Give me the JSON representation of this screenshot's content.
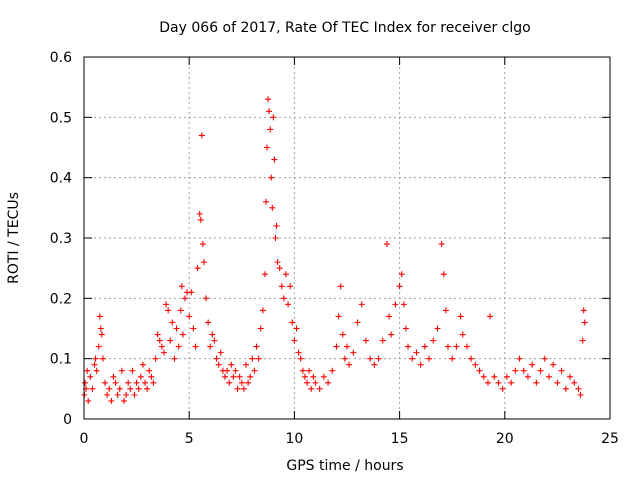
{
  "chart_data": {
    "type": "scatter",
    "title": "Day 066 of 2017, Rate Of TEC Index for receiver clgo",
    "xlabel": "GPS time / hours",
    "ylabel": "ROTI / TECUs",
    "xlim": [
      0,
      25
    ],
    "ylim": [
      0,
      0.6
    ],
    "x_ticks": [
      0,
      5,
      10,
      15,
      20,
      25
    ],
    "y_ticks": [
      0,
      0.1,
      0.2,
      0.3,
      0.4,
      0.5,
      0.6
    ],
    "x_tick_labels": [
      "0",
      "5",
      "10",
      "15",
      "20",
      "25"
    ],
    "y_tick_labels": [
      "0",
      "0.1",
      "0.2",
      "0.3",
      "0.4",
      "0.5",
      "0.6"
    ],
    "grid": true,
    "legend": "none",
    "marker": "plus",
    "color": "#ff0000",
    "points": [
      [
        0.02,
        0.04
      ],
      [
        0.05,
        0.06
      ],
      [
        0.1,
        0.05
      ],
      [
        0.15,
        0.08
      ],
      [
        0.2,
        0.03
      ],
      [
        0.3,
        0.07
      ],
      [
        0.4,
        0.05
      ],
      [
        0.5,
        0.09
      ],
      [
        0.55,
        0.1
      ],
      [
        0.6,
        0.08
      ],
      [
        0.7,
        0.12
      ],
      [
        0.75,
        0.17
      ],
      [
        0.8,
        0.15
      ],
      [
        0.85,
        0.14
      ],
      [
        0.9,
        0.1
      ],
      [
        1.0,
        0.06
      ],
      [
        1.1,
        0.04
      ],
      [
        1.2,
        0.05
      ],
      [
        1.3,
        0.03
      ],
      [
        1.4,
        0.07
      ],
      [
        1.5,
        0.06
      ],
      [
        1.6,
        0.04
      ],
      [
        1.7,
        0.05
      ],
      [
        1.8,
        0.08
      ],
      [
        1.9,
        0.03
      ],
      [
        2.0,
        0.04
      ],
      [
        2.1,
        0.06
      ],
      [
        2.2,
        0.05
      ],
      [
        2.3,
        0.08
      ],
      [
        2.4,
        0.04
      ],
      [
        2.5,
        0.06
      ],
      [
        2.6,
        0.05
      ],
      [
        2.7,
        0.07
      ],
      [
        2.8,
        0.09
      ],
      [
        2.9,
        0.06
      ],
      [
        3.0,
        0.05
      ],
      [
        3.1,
        0.08
      ],
      [
        3.2,
        0.07
      ],
      [
        3.3,
        0.06
      ],
      [
        3.4,
        0.1
      ],
      [
        3.5,
        0.14
      ],
      [
        3.6,
        0.13
      ],
      [
        3.7,
        0.12
      ],
      [
        3.8,
        0.11
      ],
      [
        3.9,
        0.19
      ],
      [
        4.0,
        0.18
      ],
      [
        4.1,
        0.13
      ],
      [
        4.2,
        0.16
      ],
      [
        4.3,
        0.1
      ],
      [
        4.4,
        0.15
      ],
      [
        4.5,
        0.12
      ],
      [
        4.6,
        0.18
      ],
      [
        4.65,
        0.22
      ],
      [
        4.7,
        0.14
      ],
      [
        4.8,
        0.2
      ],
      [
        4.9,
        0.21
      ],
      [
        5.0,
        0.17
      ],
      [
        5.1,
        0.21
      ],
      [
        5.2,
        0.15
      ],
      [
        5.3,
        0.12
      ],
      [
        5.4,
        0.25
      ],
      [
        5.5,
        0.34
      ],
      [
        5.55,
        0.33
      ],
      [
        5.6,
        0.47
      ],
      [
        5.65,
        0.29
      ],
      [
        5.7,
        0.26
      ],
      [
        5.8,
        0.2
      ],
      [
        5.9,
        0.16
      ],
      [
        6.0,
        0.12
      ],
      [
        6.1,
        0.14
      ],
      [
        6.2,
        0.13
      ],
      [
        6.3,
        0.1
      ],
      [
        6.4,
        0.09
      ],
      [
        6.5,
        0.11
      ],
      [
        6.6,
        0.08
      ],
      [
        6.7,
        0.07
      ],
      [
        6.8,
        0.08
      ],
      [
        6.9,
        0.06
      ],
      [
        7.0,
        0.09
      ],
      [
        7.1,
        0.07
      ],
      [
        7.2,
        0.08
      ],
      [
        7.3,
        0.05
      ],
      [
        7.4,
        0.07
      ],
      [
        7.5,
        0.06
      ],
      [
        7.6,
        0.05
      ],
      [
        7.7,
        0.09
      ],
      [
        7.8,
        0.06
      ],
      [
        7.9,
        0.07
      ],
      [
        8.0,
        0.1
      ],
      [
        8.1,
        0.08
      ],
      [
        8.2,
        0.12
      ],
      [
        8.3,
        0.1
      ],
      [
        8.4,
        0.15
      ],
      [
        8.5,
        0.18
      ],
      [
        8.6,
        0.24
      ],
      [
        8.65,
        0.36
      ],
      [
        8.7,
        0.45
      ],
      [
        8.75,
        0.53
      ],
      [
        8.8,
        0.51
      ],
      [
        8.85,
        0.48
      ],
      [
        8.9,
        0.4
      ],
      [
        8.95,
        0.35
      ],
      [
        9.0,
        0.5
      ],
      [
        9.05,
        0.43
      ],
      [
        9.1,
        0.3
      ],
      [
        9.15,
        0.32
      ],
      [
        9.2,
        0.26
      ],
      [
        9.3,
        0.25
      ],
      [
        9.4,
        0.22
      ],
      [
        9.5,
        0.2
      ],
      [
        9.6,
        0.24
      ],
      [
        9.7,
        0.19
      ],
      [
        9.8,
        0.22
      ],
      [
        9.9,
        0.16
      ],
      [
        10.0,
        0.13
      ],
      [
        10.1,
        0.15
      ],
      [
        10.2,
        0.11
      ],
      [
        10.3,
        0.1
      ],
      [
        10.4,
        0.08
      ],
      [
        10.5,
        0.07
      ],
      [
        10.6,
        0.06
      ],
      [
        10.7,
        0.08
      ],
      [
        10.8,
        0.05
      ],
      [
        10.9,
        0.07
      ],
      [
        11.0,
        0.06
      ],
      [
        11.2,
        0.05
      ],
      [
        11.4,
        0.07
      ],
      [
        11.6,
        0.06
      ],
      [
        11.8,
        0.08
      ],
      [
        12.0,
        0.12
      ],
      [
        12.1,
        0.17
      ],
      [
        12.2,
        0.22
      ],
      [
        12.3,
        0.14
      ],
      [
        12.4,
        0.1
      ],
      [
        12.5,
        0.12
      ],
      [
        12.6,
        0.09
      ],
      [
        12.8,
        0.11
      ],
      [
        13.0,
        0.16
      ],
      [
        13.2,
        0.19
      ],
      [
        13.4,
        0.13
      ],
      [
        13.6,
        0.1
      ],
      [
        13.8,
        0.09
      ],
      [
        14.0,
        0.1
      ],
      [
        14.2,
        0.13
      ],
      [
        14.4,
        0.29
      ],
      [
        14.5,
        0.17
      ],
      [
        14.6,
        0.14
      ],
      [
        14.8,
        0.19
      ],
      [
        15.0,
        0.22
      ],
      [
        15.1,
        0.24
      ],
      [
        15.2,
        0.19
      ],
      [
        15.3,
        0.15
      ],
      [
        15.4,
        0.12
      ],
      [
        15.6,
        0.1
      ],
      [
        15.8,
        0.11
      ],
      [
        16.0,
        0.09
      ],
      [
        16.2,
        0.12
      ],
      [
        16.4,
        0.1
      ],
      [
        16.6,
        0.13
      ],
      [
        16.8,
        0.15
      ],
      [
        17.0,
        0.29
      ],
      [
        17.1,
        0.24
      ],
      [
        17.2,
        0.18
      ],
      [
        17.3,
        0.12
      ],
      [
        17.5,
        0.1
      ],
      [
        17.7,
        0.12
      ],
      [
        17.9,
        0.17
      ],
      [
        18.0,
        0.14
      ],
      [
        18.2,
        0.12
      ],
      [
        18.4,
        0.1
      ],
      [
        18.6,
        0.09
      ],
      [
        18.8,
        0.08
      ],
      [
        19.0,
        0.07
      ],
      [
        19.2,
        0.06
      ],
      [
        19.3,
        0.17
      ],
      [
        19.5,
        0.07
      ],
      [
        19.7,
        0.06
      ],
      [
        19.9,
        0.05
      ],
      [
        20.1,
        0.07
      ],
      [
        20.3,
        0.06
      ],
      [
        20.5,
        0.08
      ],
      [
        20.7,
        0.1
      ],
      [
        20.9,
        0.08
      ],
      [
        21.1,
        0.07
      ],
      [
        21.3,
        0.09
      ],
      [
        21.5,
        0.06
      ],
      [
        21.7,
        0.08
      ],
      [
        21.9,
        0.1
      ],
      [
        22.1,
        0.07
      ],
      [
        22.3,
        0.09
      ],
      [
        22.5,
        0.06
      ],
      [
        22.7,
        0.08
      ],
      [
        22.9,
        0.05
      ],
      [
        23.1,
        0.07
      ],
      [
        23.3,
        0.06
      ],
      [
        23.5,
        0.05
      ],
      [
        23.6,
        0.04
      ],
      [
        23.7,
        0.13
      ],
      [
        23.75,
        0.18
      ],
      [
        23.8,
        0.16
      ]
    ]
  }
}
